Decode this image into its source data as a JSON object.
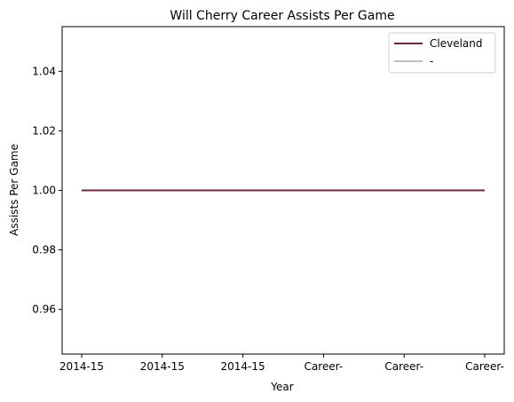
{
  "chart_data": {
    "type": "line",
    "title": "Will Cherry Career Assists Per Game",
    "xlabel": "Year",
    "ylabel": "Assists Per Game",
    "categories": [
      "2014-15",
      "2014-15",
      "2014-15",
      "Career-",
      "Career-",
      "Career-"
    ],
    "ylim": [
      0.945,
      1.055
    ],
    "yticks": [
      0.96,
      0.98,
      1.0,
      1.02,
      1.04
    ],
    "ytick_labels": [
      "0.96",
      "0.98",
      "1.00",
      "1.02",
      "1.04"
    ],
    "grid": false,
    "legend_position": "top-right",
    "series": [
      {
        "name": "Cleveland",
        "values": [
          1.0,
          1.0,
          1.0,
          1.0,
          1.0,
          1.0
        ],
        "color": "#6b2640"
      },
      {
        "name": "-",
        "values": [
          1.0,
          1.0,
          1.0,
          1.0,
          1.0,
          1.0
        ],
        "color": "#bdbdbd"
      }
    ]
  }
}
